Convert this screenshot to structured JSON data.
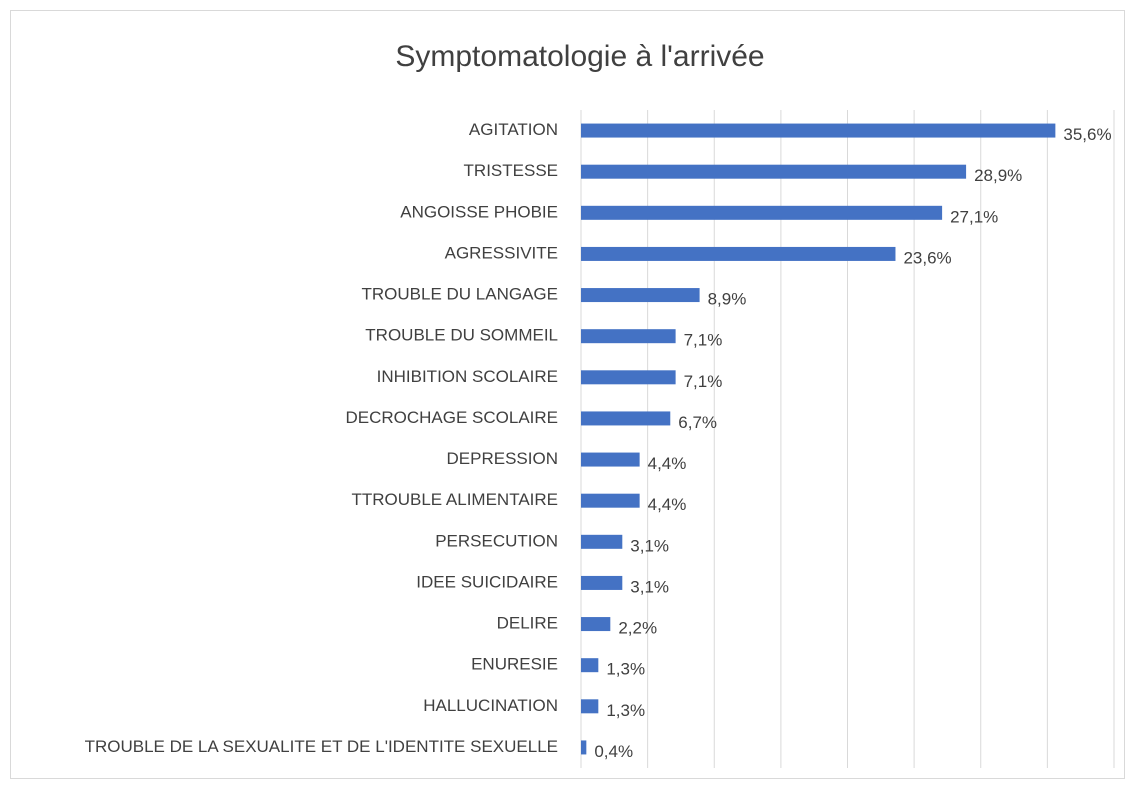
{
  "chart_data": {
    "type": "hbar",
    "title": "Symptomatologie à l'arrivée",
    "categories": [
      "AGITATION",
      "TRISTESSE",
      "ANGOISSE PHOBIE",
      "AGRESSIVITE",
      "TROUBLE DU LANGAGE",
      "TROUBLE DU SOMMEIL",
      "INHIBITION SCOLAIRE",
      "DECROCHAGE SCOLAIRE",
      "DEPRESSION",
      "TTROUBLE ALIMENTAIRE",
      "PERSECUTION",
      "IDEE SUICIDAIRE",
      "DELIRE",
      "ENURESIE",
      "HALLUCINATION",
      "TROUBLE DE LA SEXUALITE ET DE L'IDENTITE SEXUELLE"
    ],
    "values": [
      35.6,
      28.9,
      27.1,
      23.6,
      8.9,
      7.1,
      7.1,
      6.7,
      4.4,
      4.4,
      3.1,
      3.1,
      2.2,
      1.3,
      1.3,
      0.4
    ],
    "value_labels": [
      "35,6%",
      "28,9%",
      "27,1%",
      "23,6%",
      "8,9%",
      "7,1%",
      "7,1%",
      "6,7%",
      "4,4%",
      "4,4%",
      "3,1%",
      "3,1%",
      "2,2%",
      "1,3%",
      "1,3%",
      "0,4%"
    ],
    "color": "#4472c4",
    "xlim": [
      0,
      40
    ],
    "xticks": [
      0,
      5,
      10,
      15,
      20,
      25,
      30,
      35,
      40
    ],
    "grid": true
  }
}
